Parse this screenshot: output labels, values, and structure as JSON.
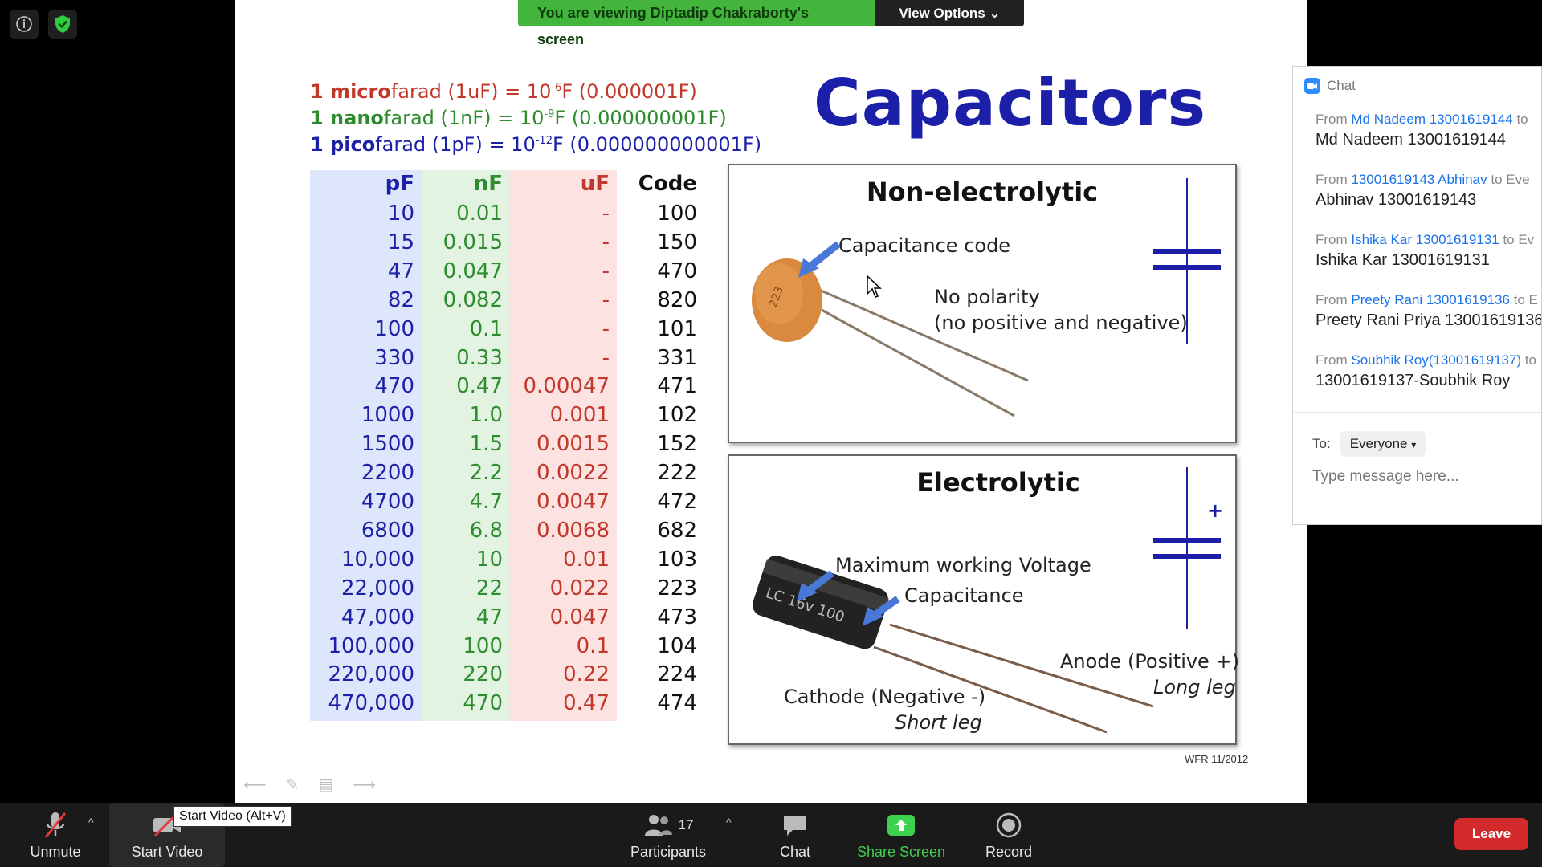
{
  "banner": {
    "viewing_text": "You are viewing Diptadip Chakraborty's screen",
    "view_options": "View Options ⌄"
  },
  "slide": {
    "title": "Capacitors",
    "conversions": [
      {
        "bold": "1 micro",
        "rest": "farad (1uF) = 10",
        "exp": "-6",
        "tail": "F   (0.000001F)",
        "color": "#c0392b"
      },
      {
        "bold": "1 nano",
        "rest": "farad (1nF)  = 10",
        "exp": "-9",
        "tail": "F   (0.000000001F)",
        "color": "#2e8b2e"
      },
      {
        "bold": "1 pico",
        "rest": "farad (1pF)   = 10",
        "exp": "-12",
        "tail": "F (0.000000000001F)",
        "color": "#1c20a8"
      }
    ],
    "table": {
      "headers": [
        "pF",
        "nF",
        "uF",
        "Code"
      ],
      "rows": [
        [
          "10",
          "0.01",
          "-",
          "100"
        ],
        [
          "15",
          "0.015",
          "-",
          "150"
        ],
        [
          "47",
          "0.047",
          "-",
          "470"
        ],
        [
          "82",
          "0.082",
          "-",
          "820"
        ],
        [
          "100",
          "0.1",
          "-",
          "101"
        ],
        [
          "330",
          "0.33",
          "-",
          "331"
        ],
        [
          "470",
          "0.47",
          "0.00047",
          "471"
        ],
        [
          "1000",
          "1.0",
          "0.001",
          "102"
        ],
        [
          "1500",
          "1.5",
          "0.0015",
          "152"
        ],
        [
          "2200",
          "2.2",
          "0.0022",
          "222"
        ],
        [
          "4700",
          "4.7",
          "0.0047",
          "472"
        ],
        [
          "6800",
          "6.8",
          "0.0068",
          "682"
        ],
        [
          "10,000",
          "10",
          "0.01",
          "103"
        ],
        [
          "22,000",
          "22",
          "0.022",
          "223"
        ],
        [
          "47,000",
          "47",
          "0.047",
          "473"
        ],
        [
          "100,000",
          "100",
          "0.1",
          "104"
        ],
        [
          "220,000",
          "220",
          "0.22",
          "224"
        ],
        [
          "470,000",
          "470",
          "0.47",
          "474"
        ]
      ]
    },
    "non_electrolytic": {
      "title": "Non-electrolytic",
      "capacitance_code": "Capacitance code",
      "no_polarity": "No polarity",
      "no_polarity_sub": "(no positive and negative)",
      "body_code": "223"
    },
    "electrolytic": {
      "title": "Electrolytic",
      "max_voltage": "Maximum working Voltage",
      "capacitance": "Capacitance",
      "anode": "Anode (Positive +)",
      "long_leg": "Long leg",
      "cathode": "Cathode (Negative -)",
      "short_leg": "Short leg",
      "plus": "+",
      "body_text": "LC  16v 100"
    },
    "credit": "WFR 11/2012"
  },
  "chat": {
    "title": "Chat",
    "messages": [
      {
        "from_prefix": "From ",
        "name": "Md Nadeem 13001619144",
        "to": " to",
        "text": "Md Nadeem 13001619144"
      },
      {
        "from_prefix": "From ",
        "name": "13001619143 Abhinav",
        "to": " to Eve",
        "text": "Abhinav 13001619143"
      },
      {
        "from_prefix": "From ",
        "name": "Ishika Kar 13001619131",
        "to": " to Ev",
        "text": "Ishika Kar 13001619131"
      },
      {
        "from_prefix": "From ",
        "name": "Preety Rani 13001619136",
        "to": " to E",
        "text": "Preety Rani Priya 13001619136"
      },
      {
        "from_prefix": "From ",
        "name": "Soubhik Roy(13001619137)",
        "to": " to",
        "text": "13001619137-Soubhik Roy"
      }
    ],
    "to_label": "To:",
    "to_value": "Everyone",
    "placeholder": "Type message here..."
  },
  "toolbar": {
    "unmute": "Unmute",
    "start_video": "Start Video",
    "tooltip": "Start Video (Alt+V)",
    "participants": "Participants",
    "participants_count": "17",
    "chat": "Chat",
    "share_screen": "Share Screen",
    "record": "Record",
    "leave": "Leave"
  }
}
